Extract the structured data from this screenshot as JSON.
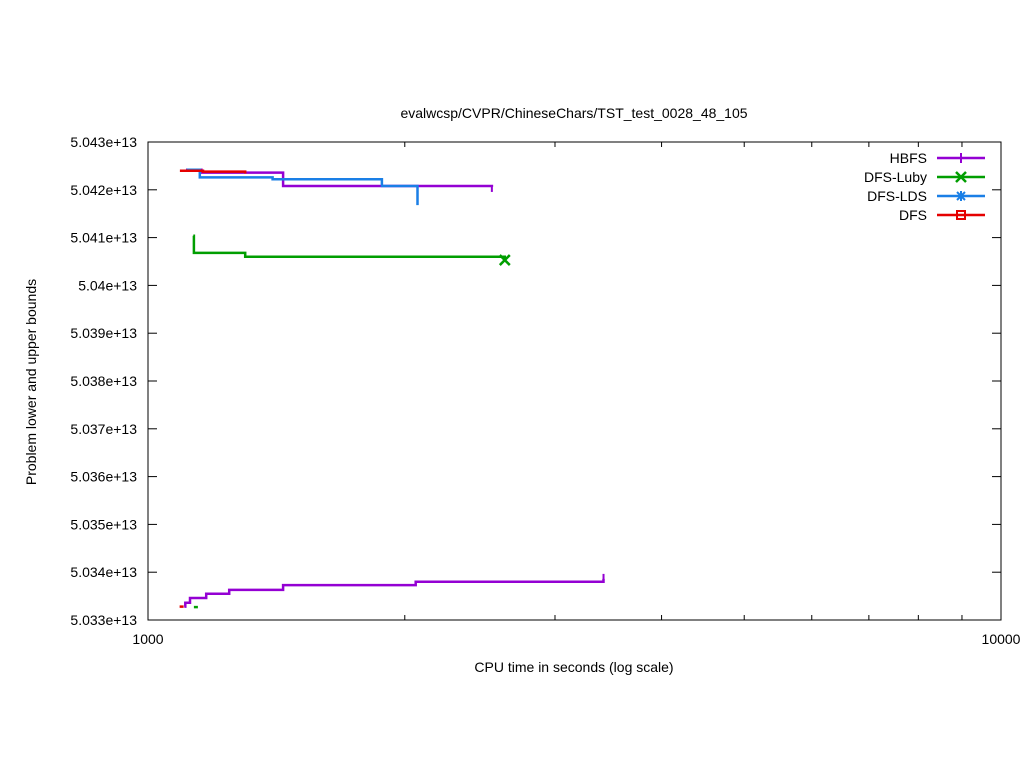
{
  "chart_data": {
    "type": "line",
    "title": "evalwcsp/CVPR/ChineseChars/TST_test_0028_48_105",
    "xlabel": "CPU time in seconds (log scale)",
    "ylabel": "Problem lower and upper bounds",
    "xscale": "log",
    "xlim": [
      1000,
      10000
    ],
    "ylim": [
      50330000000000,
      50430000000000
    ],
    "x_ticks": [
      {
        "value": 1000,
        "label": "1000"
      },
      {
        "value": 10000,
        "label": "10000"
      }
    ],
    "x_minor_ticks": [
      2000,
      3000,
      4000,
      5000,
      6000,
      7000,
      8000,
      9000
    ],
    "y_ticks": [
      {
        "value": 50330000000000,
        "label": "5.033e+13"
      },
      {
        "value": 50340000000000,
        "label": "5.034e+13"
      },
      {
        "value": 50350000000000,
        "label": "5.035e+13"
      },
      {
        "value": 50360000000000,
        "label": "5.036e+13"
      },
      {
        "value": 50370000000000,
        "label": "5.037e+13"
      },
      {
        "value": 50380000000000,
        "label": "5.038e+13"
      },
      {
        "value": 50390000000000,
        "label": "5.039e+13"
      },
      {
        "value": 50400000000000,
        "label": "5.04e+13"
      },
      {
        "value": 50410000000000,
        "label": "5.041e+13"
      },
      {
        "value": 50420000000000,
        "label": "5.042e+13"
      },
      {
        "value": 50430000000000,
        "label": "5.043e+13"
      }
    ],
    "grid": false,
    "legend_position": "top-right",
    "series": [
      {
        "name": "HBFS",
        "color": "#9400d3",
        "marker": "plus",
        "upper": [
          [
            1108,
            50424200000000
          ],
          [
            1155,
            50423600000000
          ],
          [
            1440,
            50420800000000
          ],
          [
            2530,
            50420600000000
          ]
        ],
        "lower": [
          [
            1103,
            50332800000000
          ],
          [
            1106,
            50333600000000
          ],
          [
            1120,
            50334600000000
          ],
          [
            1170,
            50335500000000
          ],
          [
            1245,
            50336300000000
          ],
          [
            1440,
            50337300000000
          ],
          [
            2060,
            50338000000000
          ],
          [
            3420,
            50338600000000
          ]
        ]
      },
      {
        "name": "DFS-Luby",
        "color": "#009e00",
        "marker": "cross",
        "upper": [
          [
            1130,
            50410400000000
          ],
          [
            1132,
            50406800000000
          ],
          [
            1300,
            50406000000000
          ],
          [
            2620,
            50405300000000
          ]
        ],
        "lower": [
          [
            1138,
            50332700000000
          ]
        ]
      },
      {
        "name": "DFS-LDS",
        "color": "#1a7fe6",
        "marker": "star",
        "upper": [
          [
            1110,
            50424200000000
          ],
          [
            1150,
            50422600000000
          ],
          [
            1400,
            50422200000000
          ],
          [
            1880,
            50420800000000
          ],
          [
            2070,
            50416800000000
          ]
        ],
        "lower": []
      },
      {
        "name": "DFS",
        "color": "#e50000",
        "marker": "square",
        "upper": [
          [
            1090,
            50424000000000
          ],
          [
            1160,
            50423800000000
          ],
          [
            1300,
            50423400000000
          ]
        ],
        "lower": [
          [
            1095,
            50332800000000
          ]
        ]
      }
    ]
  }
}
